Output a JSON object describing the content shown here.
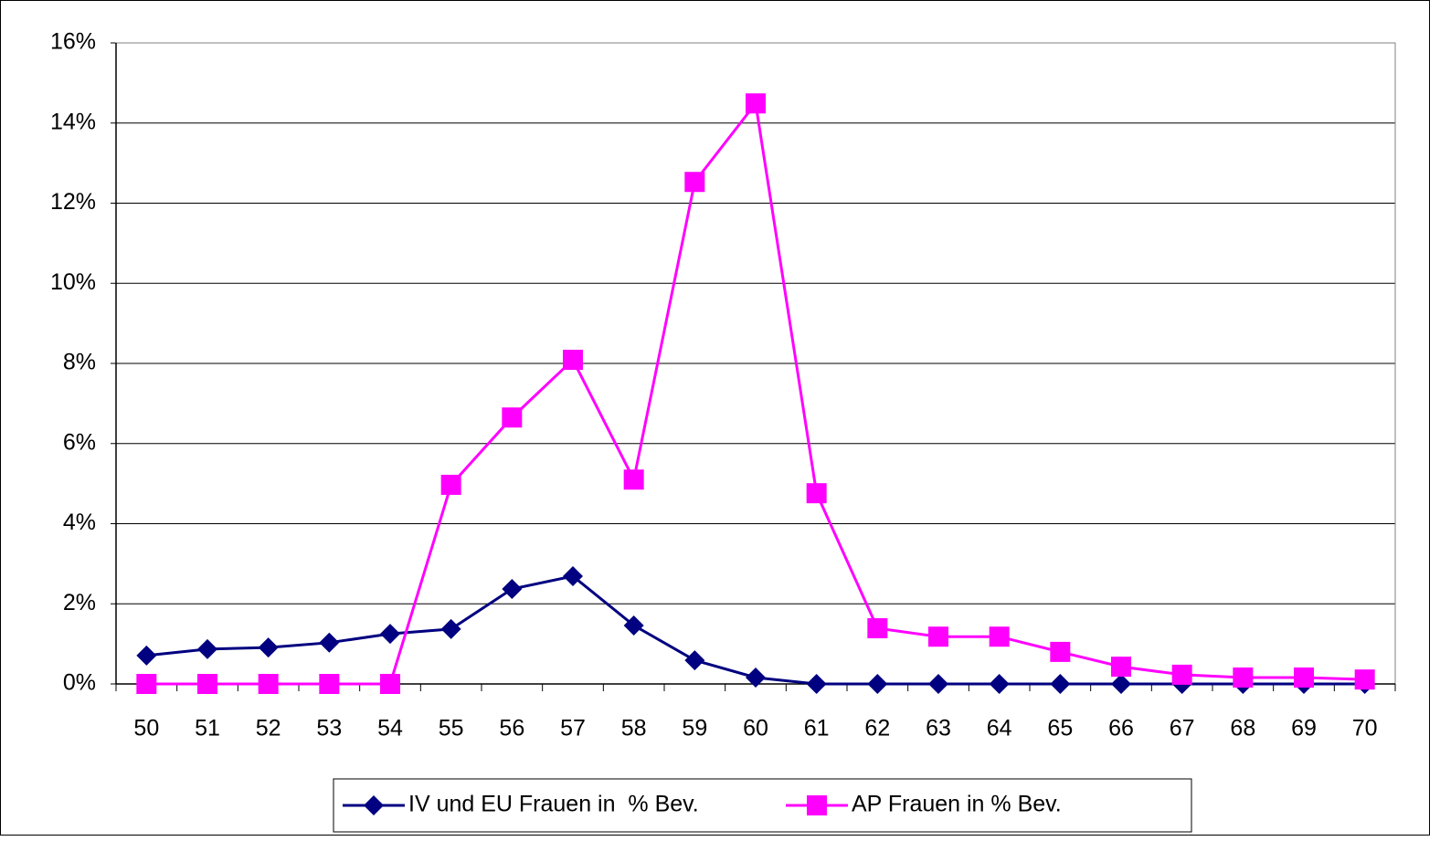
{
  "chart_data": {
    "type": "line",
    "categories": [
      "50",
      "51",
      "52",
      "53",
      "54",
      "55",
      "56",
      "57",
      "58",
      "59",
      "60",
      "61",
      "62",
      "63",
      "64",
      "65",
      "66",
      "67",
      "68",
      "69",
      "70"
    ],
    "series": [
      {
        "name": "IV und EU Frauen in  % Bev.",
        "color": "#000080",
        "marker": "diamond",
        "values": [
          0.71,
          0.87,
          0.91,
          1.03,
          1.25,
          1.37,
          2.37,
          2.69,
          1.46,
          0.59,
          0.16,
          0,
          0,
          0,
          0,
          0,
          0,
          0,
          0,
          0,
          0
        ]
      },
      {
        "name": "AP Frauen in % Bev.",
        "color": "#ff00ff",
        "marker": "square",
        "values": [
          0,
          0,
          0,
          0,
          0,
          4.97,
          6.65,
          8.09,
          5.1,
          12.53,
          14.49,
          4.76,
          1.39,
          1.18,
          1.18,
          0.8,
          0.43,
          0.23,
          0.16,
          0.16,
          0.11
        ]
      }
    ],
    "ylim": [
      0,
      16
    ],
    "yticks": [
      {
        "value": 0,
        "label": "0%"
      },
      {
        "value": 2,
        "label": "2%"
      },
      {
        "value": 4,
        "label": "4%"
      },
      {
        "value": 6,
        "label": "6%"
      },
      {
        "value": 8,
        "label": "8%"
      },
      {
        "value": 10,
        "label": "10%"
      },
      {
        "value": 12,
        "label": "12%"
      },
      {
        "value": 14,
        "label": "14%"
      },
      {
        "value": 16,
        "label": "16%"
      }
    ],
    "grid": true,
    "legend": "bottom"
  }
}
